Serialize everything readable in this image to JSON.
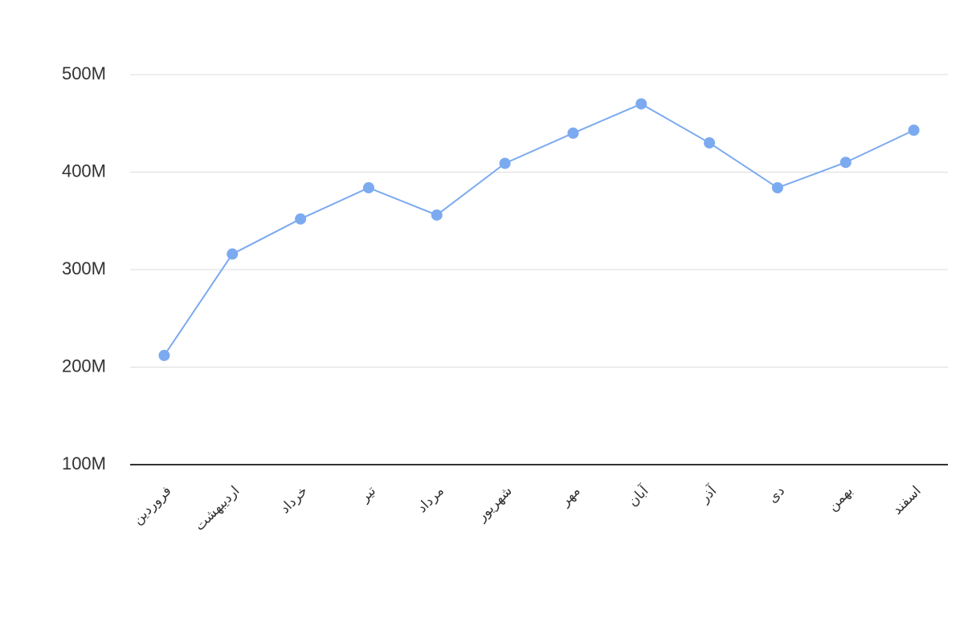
{
  "chart_data": {
    "type": "line",
    "categories": [
      "فروردین",
      "اردیبهشت",
      "خرداد",
      "تیر",
      "مرداد",
      "شهریور",
      "مهر",
      "آبان",
      "آذر",
      "دی",
      "بهمن",
      "اسفند"
    ],
    "series": [
      {
        "color": "#7baaf0",
        "values": [
          212000000,
          316000000,
          352000000,
          384000000,
          356000000,
          409000000,
          440000000,
          470000000,
          430000000,
          384000000,
          410000000,
          443000000
        ]
      }
    ],
    "ylim": [
      100000000,
      500000000
    ],
    "yticks": [
      {
        "value": 100000000,
        "label": "100M"
      },
      {
        "value": 200000000,
        "label": "200M"
      },
      {
        "value": 300000000,
        "label": "300M"
      },
      {
        "value": 400000000,
        "label": "400M"
      },
      {
        "value": 500000000,
        "label": "500M"
      }
    ],
    "grid": true
  }
}
